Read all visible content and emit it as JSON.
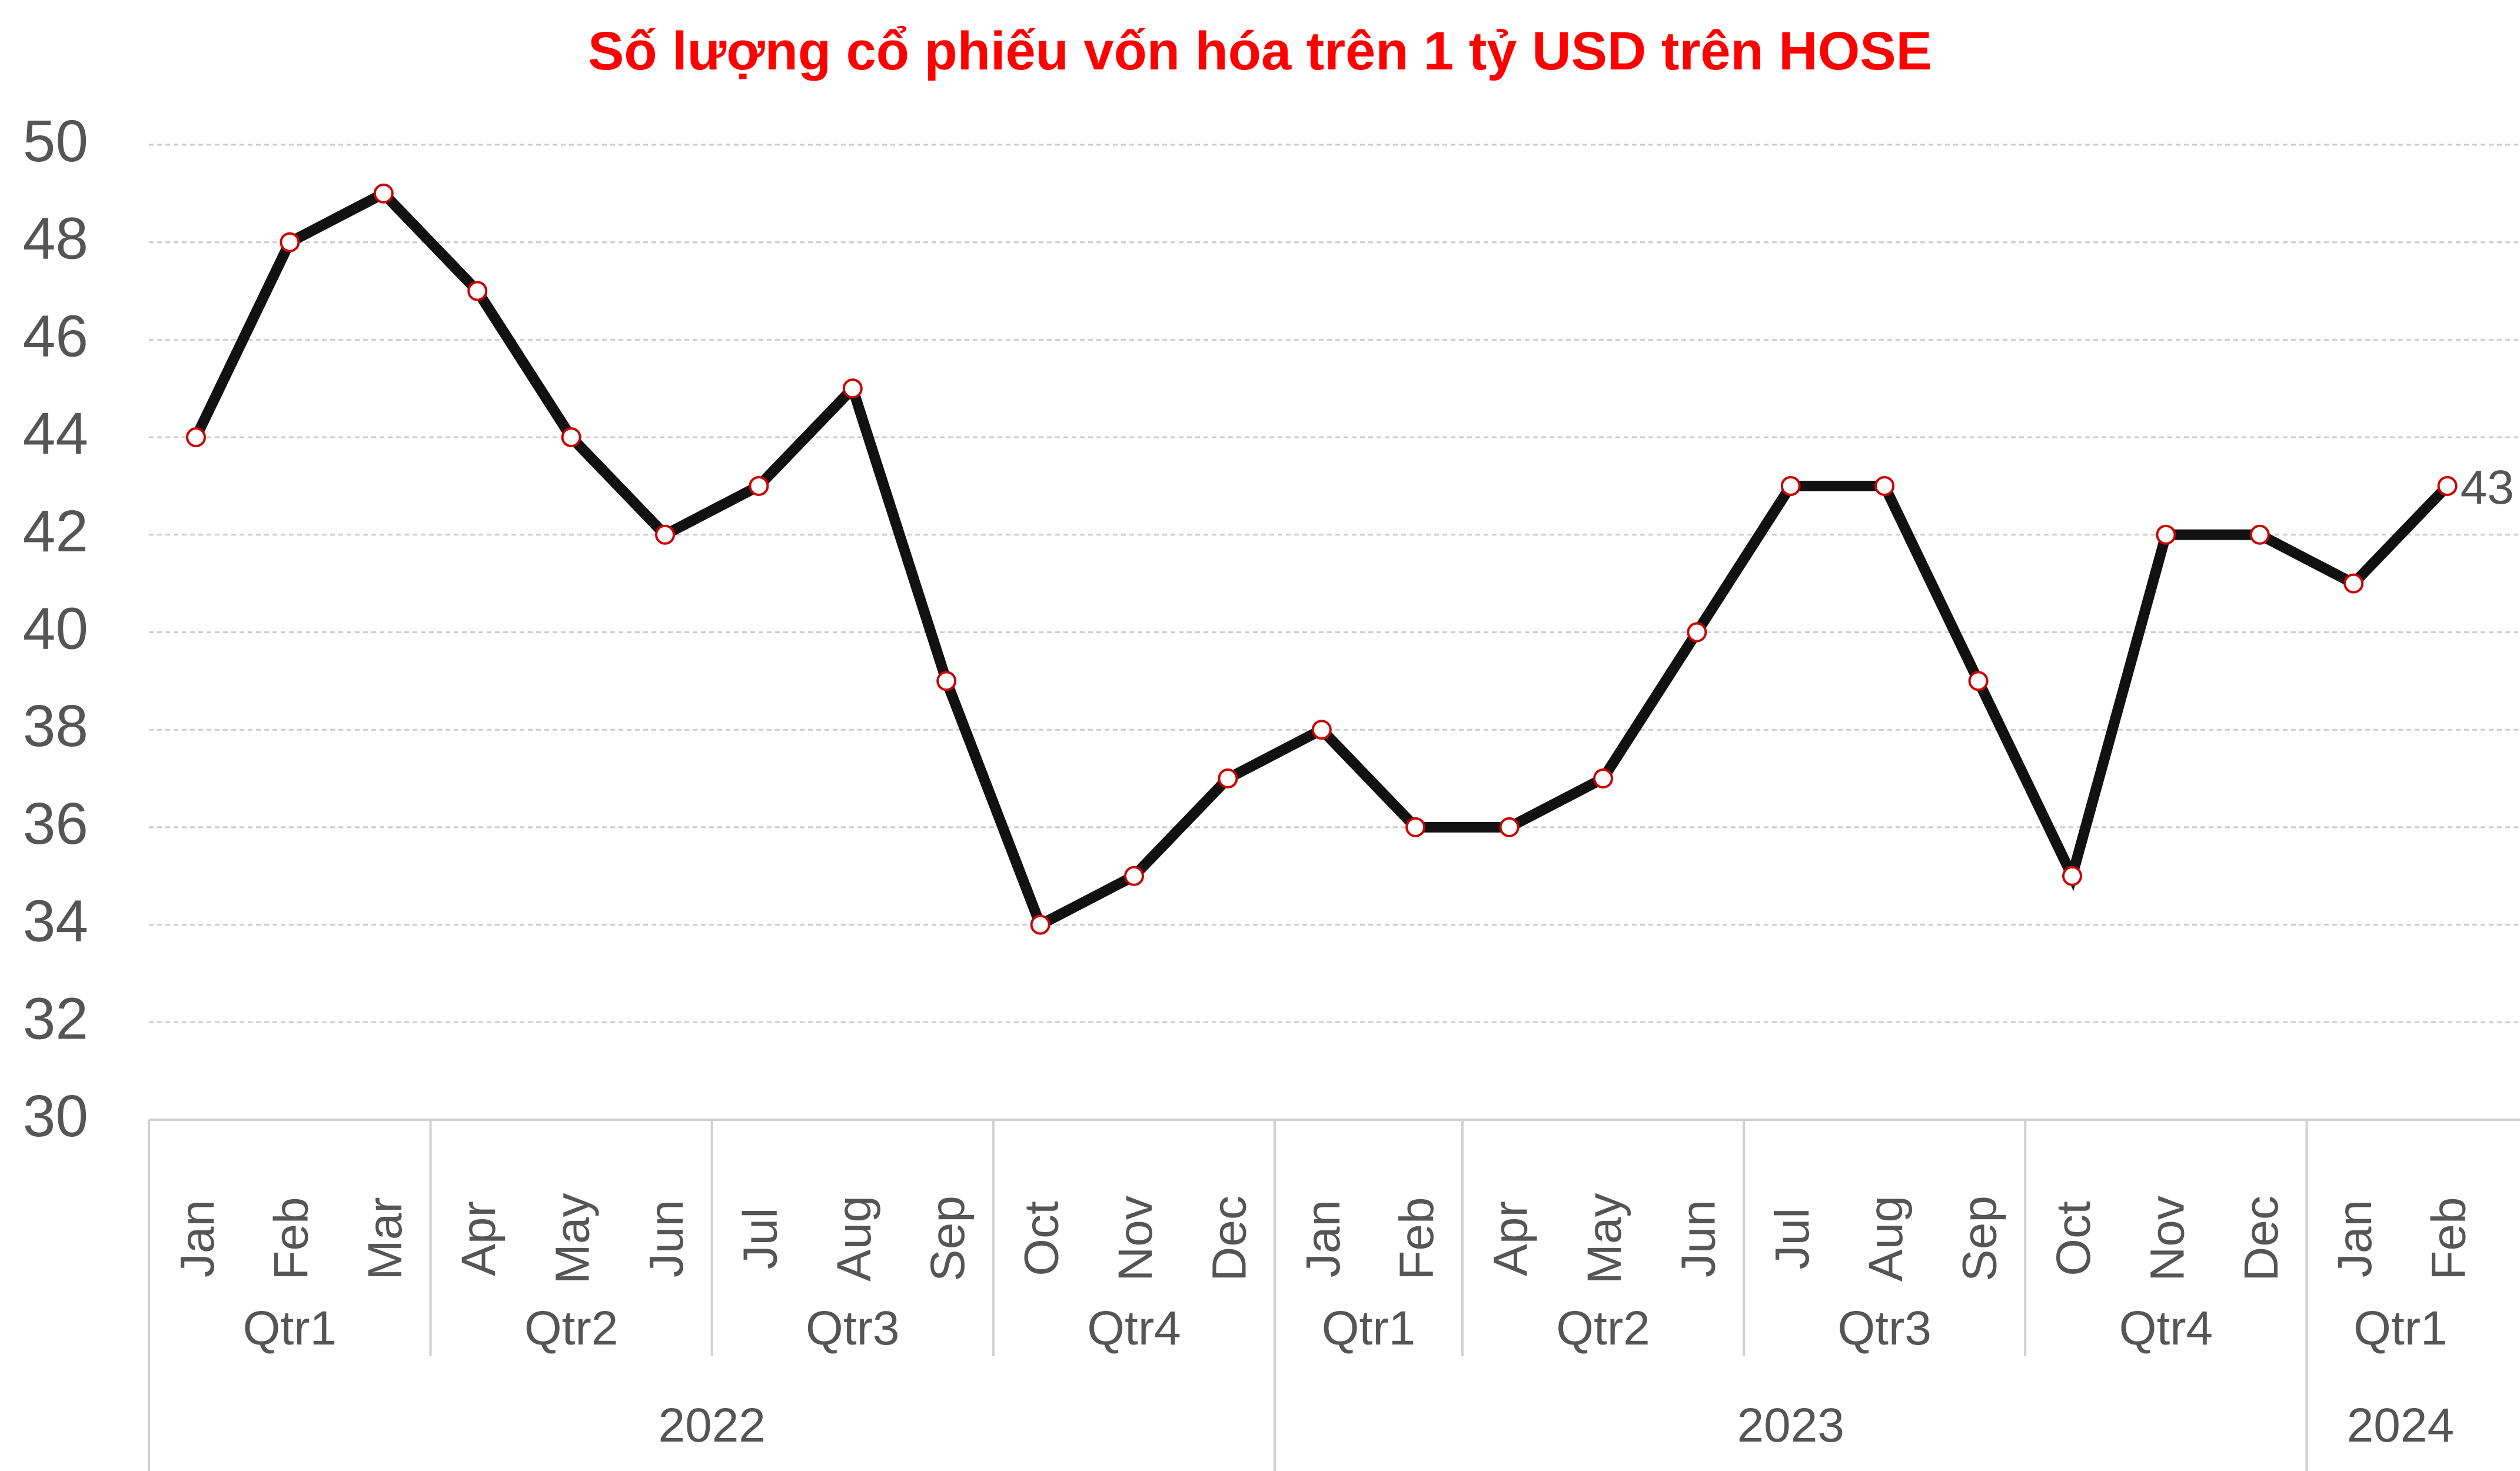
{
  "chart_data": {
    "type": "line",
    "title": "Số lượng cổ phiếu vốn hóa trên 1 tỷ USD trên HOSE",
    "xlabel": "",
    "ylabel": "",
    "ylim": [
      30,
      50
    ],
    "yticks": [
      "30",
      "32",
      "34",
      "36",
      "38",
      "40",
      "42",
      "44",
      "46",
      "48",
      "50"
    ],
    "grid": true,
    "legend": "none",
    "categories": [
      "Jan",
      "Feb",
      "Mar",
      "Apr",
      "May",
      "Jun",
      "Jul",
      "Aug",
      "Sep",
      "Oct",
      "Nov",
      "Dec",
      "Jan",
      "Feb",
      "Apr",
      "May",
      "Jun",
      "Jul",
      "Aug",
      "Sep",
      "Oct",
      "Nov",
      "Dec",
      "Jan",
      "Feb"
    ],
    "quarters": [
      {
        "label": "Qtr1",
        "count": 3
      },
      {
        "label": "Qtr2",
        "count": 3
      },
      {
        "label": "Qtr3",
        "count": 3
      },
      {
        "label": "Qtr4",
        "count": 3
      },
      {
        "label": "Qtr1",
        "count": 2
      },
      {
        "label": "Qtr2",
        "count": 3
      },
      {
        "label": "Qtr3",
        "count": 3
      },
      {
        "label": "Qtr4",
        "count": 3
      },
      {
        "label": "Qtr1",
        "count": 2
      }
    ],
    "years": [
      {
        "label": "2022",
        "count": 12
      },
      {
        "label": "2023",
        "count": 11
      },
      {
        "label": "2024",
        "count": 2
      }
    ],
    "series": [
      {
        "values": [
          44,
          48,
          49,
          47,
          44,
          42,
          43,
          45,
          39,
          34,
          35,
          37,
          38,
          36,
          36,
          37,
          40,
          43,
          43,
          39,
          35,
          42,
          42,
          41,
          43
        ]
      }
    ],
    "data_labels": [
      {
        "index": 24,
        "text": "43"
      }
    ],
    "colors": {
      "title": "#ff0000",
      "line": "#111111",
      "marker_stroke": "#cc0000",
      "marker_fill": "#ffffff",
      "grid": "#cccccc",
      "axis": "#d0d0d0",
      "text": "#555555"
    }
  }
}
